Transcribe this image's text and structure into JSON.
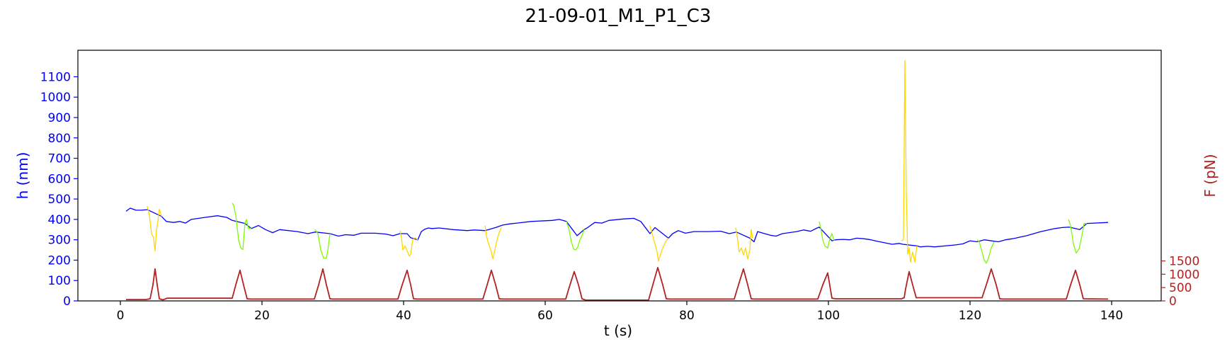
{
  "chart_data": {
    "type": "line",
    "title": "21-09-01_M1_P1_C3",
    "xlabel": "t (s)",
    "ylabel_left": "h (nm)",
    "ylabel_right": "F (pN)",
    "xlim": [
      -6,
      147
    ],
    "ylim_left": [
      0,
      1230
    ],
    "ylim_right": [
      0,
      9400
    ],
    "x_ticks": [
      0,
      20,
      40,
      60,
      80,
      100,
      120,
      140
    ],
    "y_left_ticks": [
      0,
      100,
      200,
      300,
      400,
      500,
      600,
      700,
      800,
      900,
      1000,
      1100
    ],
    "y_right_ticks": [
      0,
      500,
      1000,
      1500
    ],
    "grid": false,
    "colors": {
      "h_base": "#0000ff",
      "h_green": "#7cfc00",
      "h_gold": "#ffd700",
      "force": "#b22222",
      "axis_left": "#0000ff",
      "axis_right": "#b22222"
    },
    "series": [
      {
        "color": "#0000ff",
        "axis": "left",
        "points": [
          [
            0.8,
            440
          ],
          [
            1.4,
            455
          ],
          [
            2.2,
            445
          ],
          [
            3,
            445
          ],
          [
            3.8,
            448
          ],
          [
            5.8,
            415
          ],
          [
            6.5,
            390
          ],
          [
            7.5,
            385
          ],
          [
            8.4,
            390
          ],
          [
            9.2,
            382
          ],
          [
            10,
            400
          ],
          [
            12,
            410
          ],
          [
            13.7,
            418
          ],
          [
            15,
            410
          ],
          [
            15.8,
            395
          ],
          [
            17.6,
            380
          ],
          [
            18.5,
            355
          ],
          [
            19.5,
            370
          ],
          [
            20.5,
            350
          ],
          [
            21.5,
            335
          ],
          [
            22.5,
            350
          ],
          [
            25,
            340
          ],
          [
            26.5,
            330
          ],
          [
            27.5,
            338
          ],
          [
            29.6,
            330
          ],
          [
            30.8,
            318
          ],
          [
            31.8,
            325
          ],
          [
            33,
            322
          ],
          [
            34,
            332
          ],
          [
            36,
            332
          ],
          [
            37.5,
            328
          ],
          [
            38.5,
            320
          ],
          [
            39.5,
            330
          ],
          [
            40.5,
            330
          ],
          [
            41,
            310
          ],
          [
            42,
            300
          ],
          [
            42.5,
            340
          ],
          [
            43,
            352
          ],
          [
            43.5,
            358
          ],
          [
            44,
            355
          ],
          [
            45,
            358
          ],
          [
            47,
            350
          ],
          [
            49,
            345
          ],
          [
            50,
            348
          ],
          [
            51.5,
            345
          ],
          [
            53,
            360
          ],
          [
            54,
            372
          ],
          [
            55,
            378
          ],
          [
            56,
            382
          ],
          [
            58,
            390
          ],
          [
            61,
            395
          ],
          [
            62,
            400
          ],
          [
            63,
            390
          ],
          [
            64.5,
            320
          ],
          [
            65.5,
            350
          ],
          [
            66,
            360
          ],
          [
            67,
            385
          ],
          [
            68,
            382
          ],
          [
            69,
            395
          ],
          [
            71,
            402
          ],
          [
            72.5,
            405
          ],
          [
            73.5,
            390
          ],
          [
            74.8,
            330
          ],
          [
            75.5,
            360
          ],
          [
            77.4,
            308
          ],
          [
            78,
            330
          ],
          [
            78.8,
            345
          ],
          [
            79.8,
            332
          ],
          [
            81,
            340
          ],
          [
            83,
            340
          ],
          [
            84.8,
            342
          ],
          [
            86,
            330
          ],
          [
            87,
            338
          ],
          [
            88.9,
            308
          ],
          [
            89.5,
            290
          ],
          [
            90,
            340
          ],
          [
            91,
            330
          ],
          [
            91.8,
            322
          ],
          [
            92.6,
            318
          ],
          [
            93.5,
            330
          ],
          [
            95.5,
            340
          ],
          [
            96.5,
            348
          ],
          [
            97.5,
            342
          ],
          [
            98.4,
            358
          ],
          [
            98.7,
            362
          ],
          [
            100.5,
            295
          ],
          [
            101,
            300
          ],
          [
            102,
            302
          ],
          [
            103,
            300
          ],
          [
            104,
            308
          ],
          [
            105,
            305
          ],
          [
            106,
            300
          ],
          [
            107,
            292
          ],
          [
            108,
            285
          ],
          [
            109,
            278
          ],
          [
            110,
            282
          ],
          [
            110.5,
            278
          ],
          [
            112.5,
            270
          ],
          [
            113,
            265
          ],
          [
            114,
            268
          ],
          [
            115,
            265
          ],
          [
            118,
            275
          ],
          [
            119,
            280
          ],
          [
            120,
            295
          ],
          [
            121,
            290
          ],
          [
            122,
            300
          ],
          [
            124,
            290
          ],
          [
            125,
            300
          ],
          [
            126,
            305
          ],
          [
            128,
            320
          ],
          [
            130,
            340
          ],
          [
            132,
            355
          ],
          [
            133,
            360
          ],
          [
            134,
            362
          ],
          [
            135.5,
            350
          ],
          [
            136.5,
            380
          ],
          [
            139.5,
            385
          ]
        ]
      },
      {
        "color": "#ffd700",
        "axis": "left",
        "points": [
          [
            3.8,
            465
          ],
          [
            4.1,
            420
          ],
          [
            4.4,
            330
          ],
          [
            4.7,
            310
          ],
          [
            4.9,
            245
          ],
          [
            5.1,
            350
          ],
          [
            5.3,
            390
          ],
          [
            5.5,
            450
          ],
          [
            5.8,
            415
          ]
        ]
      },
      {
        "color": "#7cfc00",
        "axis": "left",
        "points": [
          [
            15.8,
            480
          ],
          [
            16,
            470
          ],
          [
            16.3,
            420
          ],
          [
            16.7,
            300
          ],
          [
            17,
            260
          ],
          [
            17.3,
            252
          ],
          [
            17.6,
            380
          ],
          [
            17.8,
            400
          ],
          [
            18.1,
            355
          ],
          [
            18.5,
            355
          ]
        ]
      },
      {
        "color": "#7cfc00",
        "axis": "left",
        "points": [
          [
            27.5,
            350
          ],
          [
            27.9,
            330
          ],
          [
            28.3,
            250
          ],
          [
            28.7,
            210
          ],
          [
            29.1,
            210
          ],
          [
            29.3,
            250
          ],
          [
            29.6,
            330
          ]
        ]
      },
      {
        "color": "#ffd700",
        "axis": "left",
        "points": [
          [
            39.5,
            345
          ],
          [
            39.7,
            310
          ],
          [
            39.9,
            250
          ],
          [
            40.2,
            270
          ],
          [
            40.5,
            245
          ],
          [
            40.8,
            220
          ],
          [
            41,
            230
          ],
          [
            41.3,
            300
          ],
          [
            41.6,
            310
          ],
          [
            42,
            300
          ]
        ]
      },
      {
        "color": "#ffd700",
        "axis": "left",
        "points": [
          [
            51.5,
            370
          ],
          [
            51.7,
            320
          ],
          [
            52,
            280
          ],
          [
            52.4,
            240
          ],
          [
            52.6,
            205
          ],
          [
            52.9,
            250
          ],
          [
            53.2,
            300
          ],
          [
            53.5,
            335
          ],
          [
            53.8,
            360
          ]
        ]
      },
      {
        "color": "#7cfc00",
        "axis": "left",
        "points": [
          [
            63,
            390
          ],
          [
            63.3,
            360
          ],
          [
            63.7,
            290
          ],
          [
            64,
            255
          ],
          [
            64.3,
            250
          ],
          [
            64.6,
            265
          ],
          [
            64.9,
            300
          ],
          [
            65.2,
            320
          ],
          [
            65.5,
            350
          ]
        ]
      },
      {
        "color": "#ffd700",
        "axis": "left",
        "points": [
          [
            74.8,
            370
          ],
          [
            75.1,
            330
          ],
          [
            75.5,
            280
          ],
          [
            75.8,
            240
          ],
          [
            76,
            195
          ],
          [
            76.3,
            230
          ],
          [
            76.6,
            260
          ],
          [
            77,
            290
          ],
          [
            77.4,
            308
          ]
        ]
      },
      {
        "color": "#ffd700",
        "axis": "left",
        "points": [
          [
            86.9,
            360
          ],
          [
            87.1,
            320
          ],
          [
            87.4,
            240
          ],
          [
            87.7,
            260
          ],
          [
            88,
            225
          ],
          [
            88.3,
            260
          ],
          [
            88.6,
            205
          ],
          [
            88.9,
            250
          ],
          [
            89.1,
            350
          ],
          [
            89.3,
            308
          ]
        ]
      },
      {
        "color": "#7cfc00",
        "axis": "left",
        "points": [
          [
            98.7,
            390
          ],
          [
            98.9,
            360
          ],
          [
            99.2,
            300
          ],
          [
            99.5,
            270
          ],
          [
            99.9,
            260
          ],
          [
            100.2,
            305
          ],
          [
            100.5,
            330
          ],
          [
            100.8,
            295
          ]
        ]
      },
      {
        "color": "#ffd700",
        "axis": "left",
        "points": [
          [
            110.3,
            295
          ],
          [
            110.6,
            300
          ],
          [
            110.8,
            1180
          ],
          [
            111,
            530
          ],
          [
            111.2,
            230
          ],
          [
            111.4,
            260
          ],
          [
            111.6,
            190
          ],
          [
            111.9,
            240
          ],
          [
            112.2,
            190
          ],
          [
            112.5,
            270
          ]
        ]
      },
      {
        "color": "#7cfc00",
        "axis": "left",
        "points": [
          [
            121,
            300
          ],
          [
            121.3,
            290
          ],
          [
            121.7,
            240
          ],
          [
            122,
            200
          ],
          [
            122.3,
            185
          ],
          [
            122.6,
            210
          ],
          [
            123,
            260
          ],
          [
            123.4,
            290
          ]
        ]
      },
      {
        "color": "#7cfc00",
        "axis": "left",
        "points": [
          [
            133.9,
            400
          ],
          [
            134.2,
            370
          ],
          [
            134.6,
            280
          ],
          [
            135,
            235
          ],
          [
            135.4,
            255
          ],
          [
            135.8,
            320
          ],
          [
            136.1,
            380
          ],
          [
            136.5,
            380
          ]
        ]
      },
      {
        "color": "#b22222",
        "axis": "right",
        "points": [
          [
            0.8,
            50
          ],
          [
            3.6,
            50
          ],
          [
            4.2,
            80
          ],
          [
            4.6,
            600
          ],
          [
            4.9,
            1200
          ],
          [
            5.2,
            600
          ],
          [
            5.5,
            80
          ],
          [
            6,
            40
          ],
          [
            6.6,
            100
          ],
          [
            15.8,
            100
          ],
          [
            16.3,
            600
          ],
          [
            16.9,
            1150
          ],
          [
            17.4,
            600
          ],
          [
            17.9,
            80
          ],
          [
            18.4,
            70
          ],
          [
            27.4,
            70
          ],
          [
            28,
            600
          ],
          [
            28.6,
            1200
          ],
          [
            29.1,
            600
          ],
          [
            29.6,
            80
          ],
          [
            30,
            70
          ],
          [
            39.2,
            70
          ],
          [
            39.8,
            600
          ],
          [
            40.5,
            1150
          ],
          [
            41,
            600
          ],
          [
            41.4,
            80
          ],
          [
            41.9,
            70
          ],
          [
            51.2,
            70
          ],
          [
            51.8,
            600
          ],
          [
            52.4,
            1150
          ],
          [
            53,
            600
          ],
          [
            53.5,
            80
          ],
          [
            54,
            70
          ],
          [
            62.9,
            70
          ],
          [
            63.5,
            600
          ],
          [
            64.1,
            1100
          ],
          [
            64.7,
            600
          ],
          [
            65.2,
            80
          ],
          [
            65.7,
            30
          ],
          [
            74.6,
            30
          ],
          [
            75.2,
            600
          ],
          [
            75.9,
            1250
          ],
          [
            76.6,
            600
          ],
          [
            77.1,
            80
          ],
          [
            77.6,
            70
          ],
          [
            86.7,
            70
          ],
          [
            87.3,
            600
          ],
          [
            88,
            1200
          ],
          [
            88.6,
            600
          ],
          [
            89.1,
            80
          ],
          [
            89.5,
            70
          ],
          [
            98.5,
            70
          ],
          [
            99.2,
            600
          ],
          [
            99.9,
            1050
          ],
          [
            100.5,
            100
          ],
          [
            101,
            80
          ],
          [
            110.3,
            80
          ],
          [
            110.7,
            120
          ],
          [
            110.9,
            450
          ],
          [
            111.4,
            1100
          ],
          [
            112,
            500
          ],
          [
            112.4,
            120
          ],
          [
            121.7,
            120
          ],
          [
            122.3,
            600
          ],
          [
            123,
            1200
          ],
          [
            123.7,
            600
          ],
          [
            124.2,
            80
          ],
          [
            124.7,
            70
          ],
          [
            133.6,
            70
          ],
          [
            134.2,
            600
          ],
          [
            134.9,
            1150
          ],
          [
            135.5,
            600
          ],
          [
            136,
            80
          ],
          [
            139.5,
            70
          ]
        ]
      }
    ]
  }
}
